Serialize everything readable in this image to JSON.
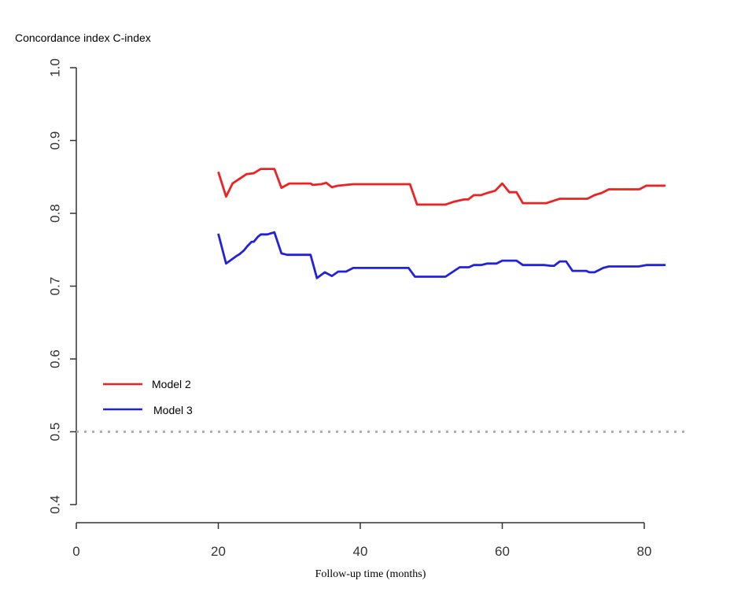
{
  "chart_data": {
    "type": "line",
    "title": "",
    "ylabel": "Concordance index C-index",
    "xlabel": "Follow-up time (months)",
    "xlim": [
      0,
      85
    ],
    "ylim": [
      0.4,
      1.0
    ],
    "xticks": [
      0,
      20,
      40,
      60,
      80
    ],
    "yticks": [
      0.4,
      0.5,
      0.6,
      0.7,
      0.8,
      0.9,
      1.0
    ],
    "xtick_labels": [
      "0",
      "20",
      "40",
      "60",
      "80"
    ],
    "ytick_labels": [
      "0.4",
      "0.5",
      "0.6",
      "0.7",
      "0.8",
      "0.9",
      "1.0"
    ],
    "grid": false,
    "legend_placement": "center-left",
    "reference_line": {
      "y": 0.5,
      "style": "dotted",
      "color": "#b0b0b0"
    },
    "series": [
      {
        "name": "Model 2",
        "color": "#ee2222",
        "points": [
          [
            20,
            0.857
          ],
          [
            21.1,
            0.823
          ],
          [
            22,
            0.841
          ],
          [
            24,
            0.854
          ],
          [
            25,
            0.855
          ],
          [
            26,
            0.861
          ],
          [
            27.9,
            0.861
          ],
          [
            28.9,
            0.835
          ],
          [
            30,
            0.841
          ],
          [
            33,
            0.841
          ],
          [
            33.3,
            0.839
          ],
          [
            34.5,
            0.84
          ],
          [
            35.2,
            0.842
          ],
          [
            36,
            0.836
          ],
          [
            36.9,
            0.838
          ],
          [
            39,
            0.84
          ],
          [
            47,
            0.84
          ],
          [
            48,
            0.812
          ],
          [
            52,
            0.812
          ],
          [
            53.2,
            0.816
          ],
          [
            54.6,
            0.819
          ],
          [
            55.2,
            0.819
          ],
          [
            56,
            0.825
          ],
          [
            57,
            0.825
          ],
          [
            57.9,
            0.828
          ],
          [
            59,
            0.831
          ],
          [
            60,
            0.841
          ],
          [
            61,
            0.829
          ],
          [
            62,
            0.829
          ],
          [
            62.9,
            0.814
          ],
          [
            66.2,
            0.814
          ],
          [
            68.1,
            0.82
          ],
          [
            72,
            0.82
          ],
          [
            73,
            0.825
          ],
          [
            74,
            0.828
          ],
          [
            75,
            0.833
          ],
          [
            79.3,
            0.833
          ],
          [
            80.3,
            0.838
          ],
          [
            83,
            0.838
          ]
        ]
      },
      {
        "name": "Model 3",
        "color": "#2222dd",
        "points": [
          [
            20,
            0.772
          ],
          [
            21.1,
            0.731
          ],
          [
            22.5,
            0.741
          ],
          [
            23,
            0.744
          ],
          [
            23.6,
            0.749
          ],
          [
            24.1,
            0.755
          ],
          [
            24.7,
            0.761
          ],
          [
            25,
            0.761
          ],
          [
            25.6,
            0.768
          ],
          [
            26,
            0.771
          ],
          [
            26.9,
            0.771
          ],
          [
            27.9,
            0.774
          ],
          [
            28.9,
            0.745
          ],
          [
            29.7,
            0.743
          ],
          [
            33,
            0.743
          ],
          [
            33.9,
            0.711
          ],
          [
            35,
            0.719
          ],
          [
            36,
            0.714
          ],
          [
            36.9,
            0.72
          ],
          [
            38,
            0.72
          ],
          [
            39,
            0.725
          ],
          [
            46.8,
            0.725
          ],
          [
            47.7,
            0.713
          ],
          [
            52,
            0.713
          ],
          [
            54,
            0.726
          ],
          [
            55.3,
            0.726
          ],
          [
            56,
            0.729
          ],
          [
            57,
            0.729
          ],
          [
            57.9,
            0.731
          ],
          [
            59.2,
            0.731
          ],
          [
            60,
            0.735
          ],
          [
            62,
            0.735
          ],
          [
            62.9,
            0.729
          ],
          [
            65.9,
            0.729
          ],
          [
            66.8,
            0.728
          ],
          [
            67.3,
            0.728
          ],
          [
            68.1,
            0.734
          ],
          [
            69,
            0.734
          ],
          [
            69.9,
            0.721
          ],
          [
            71.8,
            0.721
          ],
          [
            72.3,
            0.719
          ],
          [
            73,
            0.719
          ],
          [
            74.2,
            0.725
          ],
          [
            75,
            0.727
          ],
          [
            79.2,
            0.727
          ],
          [
            80.3,
            0.729
          ],
          [
            83,
            0.729
          ]
        ]
      }
    ]
  }
}
